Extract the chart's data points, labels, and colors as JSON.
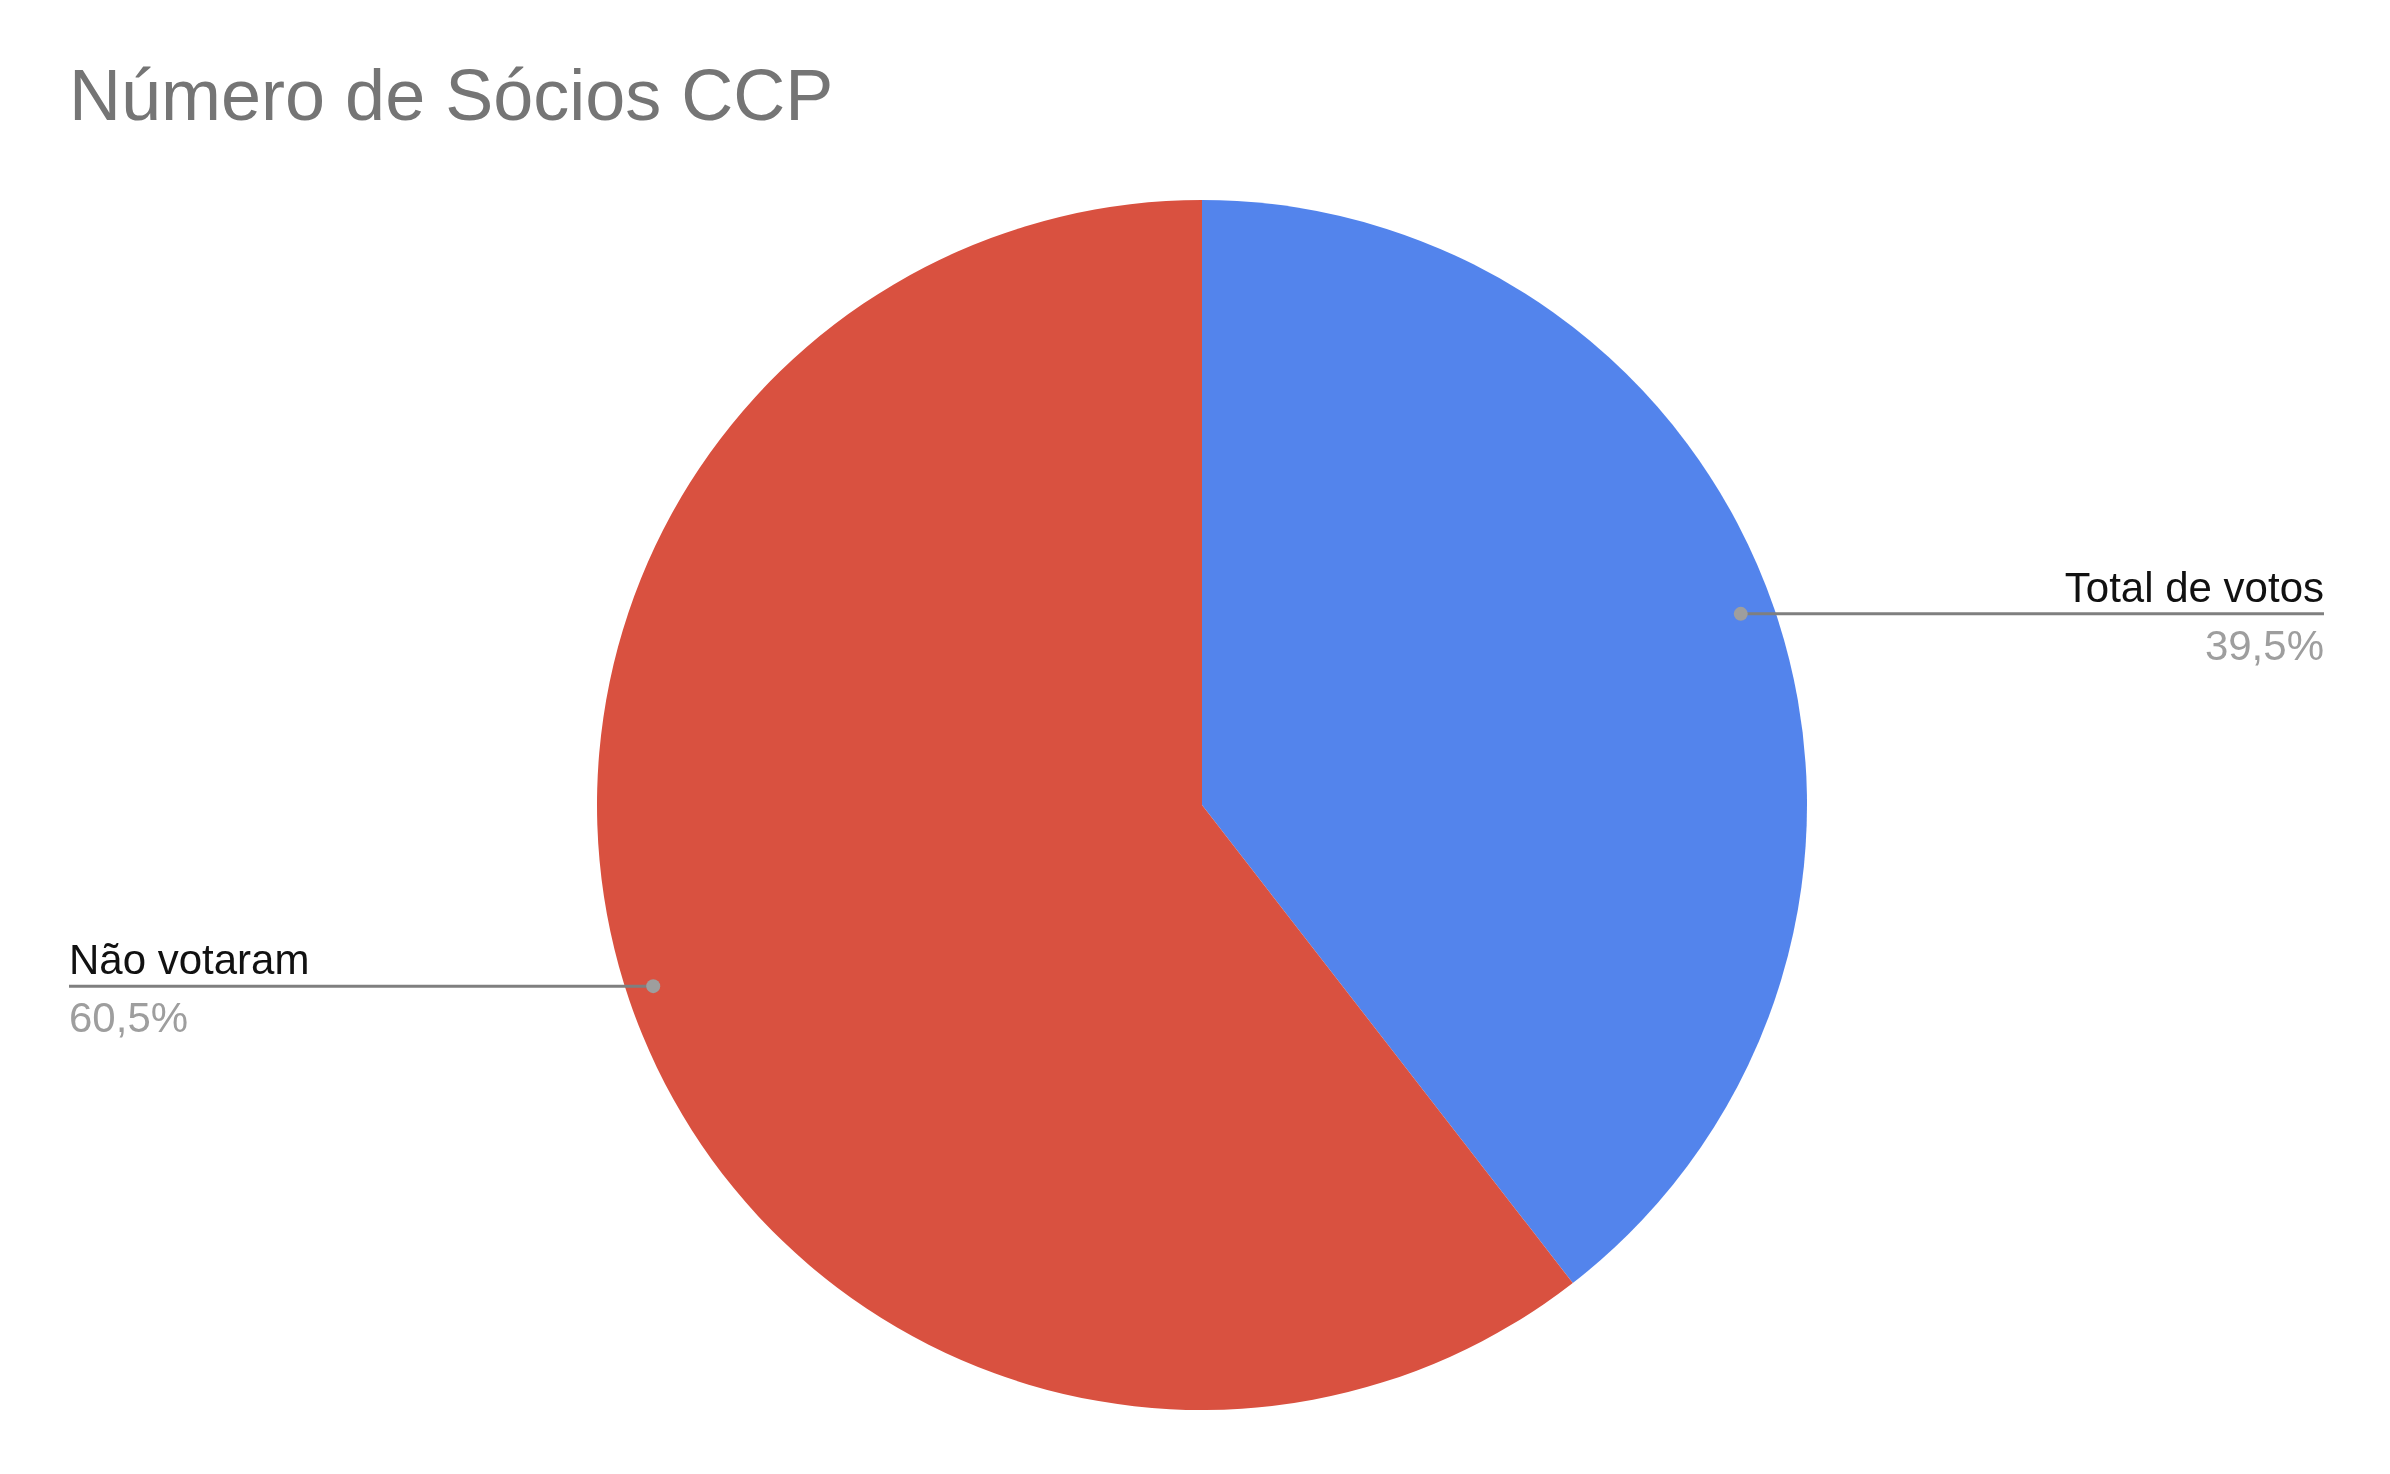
{
  "chart_data": {
    "type": "pie",
    "title": "Número de Sócios CCP",
    "categories": [
      "Total de votos",
      "Não votaram"
    ],
    "values": [
      39.5,
      60.5
    ],
    "value_labels": [
      "39,5%",
      "60,5%"
    ],
    "colors": [
      "#5384ec",
      "#d95140"
    ],
    "legend": false
  }
}
